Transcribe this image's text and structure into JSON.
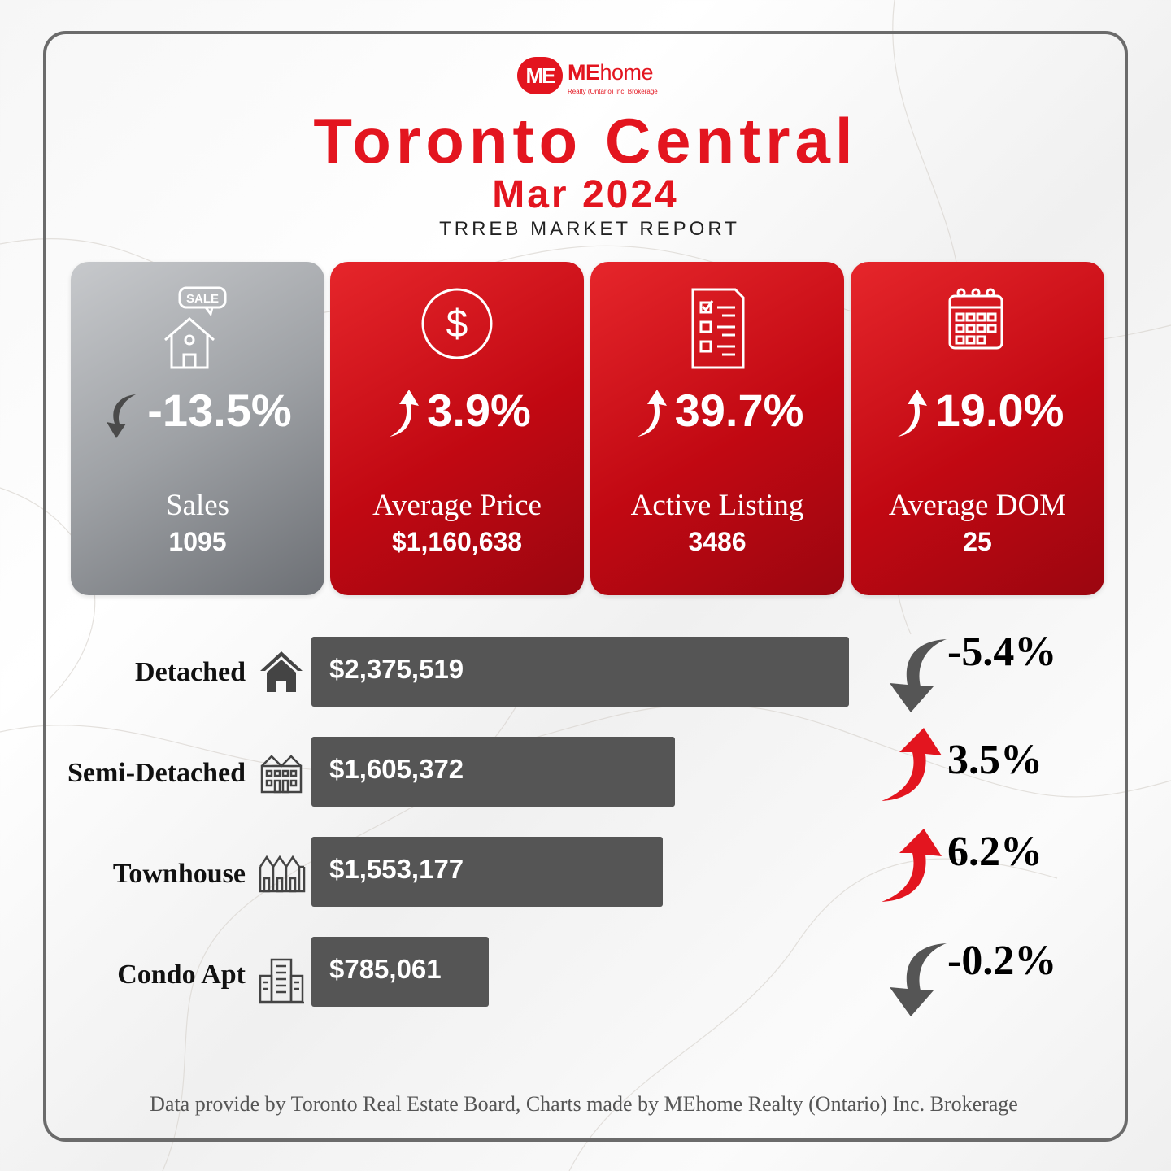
{
  "logo": {
    "mark": "ME",
    "word_bold": "ME",
    "word_light": "home",
    "sub": "Realty (Ontario) Inc. Brokerage"
  },
  "header": {
    "title": "Toronto Central",
    "date": "Mar 2024",
    "report": "TRREB MARKET REPORT"
  },
  "colors": {
    "brand_red": "#e3151f",
    "bar_grey": "#555555",
    "down_arrow": "#555555",
    "up_arrow": "#e3151f"
  },
  "cards": [
    {
      "icon": "sale-house-icon",
      "change": "-13.5%",
      "direction": "down",
      "label": "Sales",
      "value": "1095"
    },
    {
      "icon": "dollar-coin-icon",
      "change": "3.9%",
      "direction": "up",
      "label": "Average Price",
      "value": "$1,160,638"
    },
    {
      "icon": "checklist-icon",
      "change": "39.7%",
      "direction": "up",
      "label": "Active Listing",
      "value": "3486"
    },
    {
      "icon": "calendar-icon",
      "change": "19.0%",
      "direction": "up",
      "label": "Average DOM",
      "value": "25"
    }
  ],
  "chart_data": {
    "type": "bar",
    "orientation": "horizontal",
    "categories": [
      "Detached",
      "Semi-Detached",
      "Townhouse",
      "Condo Apt"
    ],
    "values": [
      2375519,
      1605372,
      1553177,
      785061
    ],
    "value_labels": [
      "$2,375,519",
      "$1,605,372",
      "$1,553,177",
      "$785,061"
    ],
    "changes": [
      "-5.4%",
      "3.5%",
      "6.2%",
      "-0.2%"
    ],
    "change_directions": [
      "down",
      "up",
      "up",
      "down"
    ],
    "icons": [
      "house-icon",
      "semi-detached-building-icon",
      "townhouse-icon",
      "condo-tower-icon"
    ],
    "title": "",
    "xlabel": "",
    "ylabel": "",
    "xlim": [
      0,
      2375519
    ],
    "grid": false
  },
  "footer": "Data provide by Toronto Real Estate Board, Charts made by MEhome Realty (Ontario) Inc. Brokerage"
}
